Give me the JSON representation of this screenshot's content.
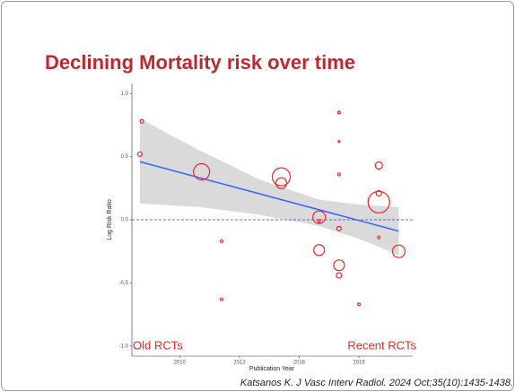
{
  "chart_data": {
    "type": "scatter",
    "title": "Declining Mortality risk over time",
    "xlabel": "Publication Year",
    "ylabel": "Log Risk Ratio",
    "annotations": [
      "Old RCTs",
      "Recent RCTs"
    ],
    "citation": "Katsanos K. J Vasc Interv Radiol. 2024 Oct;35(10):1435-1438.",
    "x": [
      2008.1,
      2008.0,
      2011.1,
      2012.1,
      2012.1,
      2015.1,
      2015.1,
      2017.0,
      2017.0,
      2017.0,
      2018,
      2018,
      2018,
      2018,
      2018,
      2018,
      2019,
      2020,
      2020,
      2020,
      2020,
      2021
    ],
    "values": [
      0.78,
      0.52,
      0.38,
      -0.17,
      -0.63,
      0.34,
      0.29,
      0.02,
      -0.01,
      -0.24,
      0.85,
      0.62,
      0.36,
      -0.07,
      -0.36,
      -0.44,
      -0.67,
      0.43,
      0.21,
      0.14,
      -0.14,
      -0.25
    ],
    "sizes": [
      2,
      2.5,
      9,
      1.5,
      1.5,
      10,
      6,
      7,
      1.5,
      6,
      1.5,
      1,
      1.5,
      2.5,
      6,
      3,
      1.5,
      4,
      3,
      12,
      1.5,
      7
    ],
    "color": "#e8262a",
    "fit": {
      "x": [
        2008,
        2021
      ],
      "y": [
        0.46,
        -0.09
      ],
      "color": "#3366ff"
    },
    "band": {
      "x": [
        2008,
        2011,
        2014,
        2017,
        2019,
        2021
      ],
      "upper": [
        0.8,
        0.55,
        0.32,
        0.16,
        0.12,
        0.1
      ],
      "lower": [
        0.13,
        0.1,
        0.04,
        -0.05,
        -0.15,
        -0.28
      ],
      "color": "#d6d6d6"
    },
    "hline": 0,
    "xlim": [
      2007.6,
      2021.7
    ],
    "xticks": [
      2010,
      2013,
      2016,
      2019
    ],
    "ylim": [
      -1.08,
      1.08
    ],
    "yticks": [
      {
        "value": 1,
        "label": "1.0"
      },
      {
        "value": 0.5,
        "label": "0.5"
      },
      {
        "value": 0,
        "label": "0.0"
      },
      {
        "value": -0.5,
        "label": "-0.5"
      },
      {
        "value": -1,
        "label": "-1.0"
      }
    ]
  }
}
